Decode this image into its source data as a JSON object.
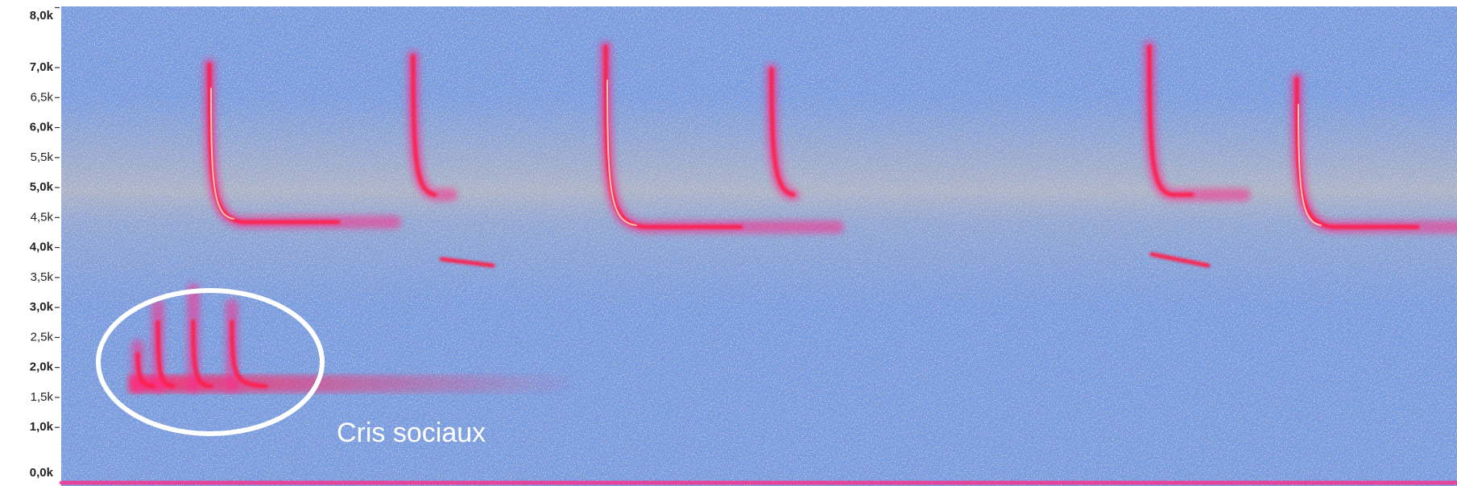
{
  "chart_data": {
    "type": "spectrogram",
    "ylim": [
      0,
      8000
    ],
    "yticks": [
      {
        "value": 8000,
        "label": "8,0k"
      },
      {
        "value": 7000,
        "label": "7,0k"
      },
      {
        "value": 6500,
        "label": "6,5k"
      },
      {
        "value": 6000,
        "label": "6,0k"
      },
      {
        "value": 5500,
        "label": "5,5k"
      },
      {
        "value": 5000,
        "label": "5,0k"
      },
      {
        "value": 4500,
        "label": "4,5k"
      },
      {
        "value": 4000,
        "label": "4,0k"
      },
      {
        "value": 3500,
        "label": "3,5k"
      },
      {
        "value": 3000,
        "label": "3,0k"
      },
      {
        "value": 2500,
        "label": "2,5k"
      },
      {
        "value": 2000,
        "label": "2,0k"
      },
      {
        "value": 1500,
        "label": "1,5k"
      },
      {
        "value": 1000,
        "label": "1,0k"
      },
      {
        "value": 0,
        "label": "0,0k"
      }
    ],
    "annotation": "Cris sociaux"
  }
}
